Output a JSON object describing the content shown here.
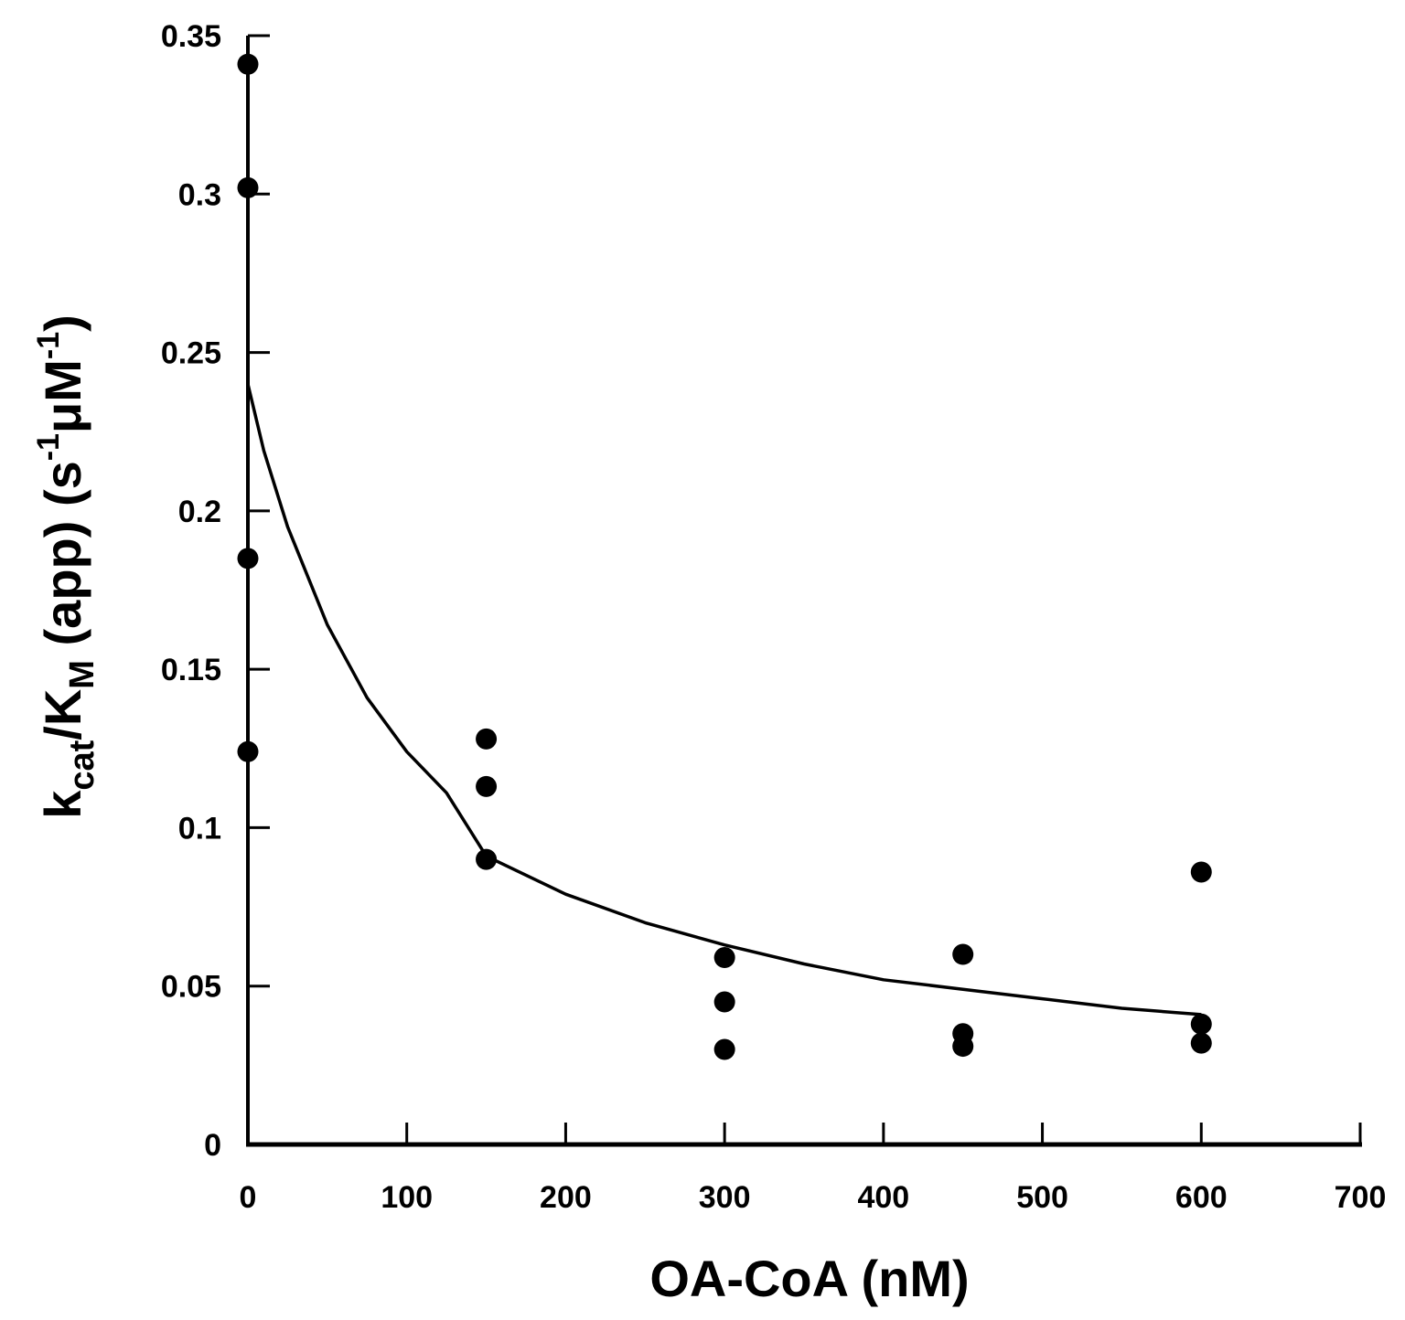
{
  "chart_data": {
    "type": "scatter",
    "title": "",
    "xlabel": "OA-CoA (nM)",
    "ylabel": {
      "parts": [
        {
          "text": "k",
          "style": "normal"
        },
        {
          "text": "cat",
          "style": "sub"
        },
        {
          "text": "/K",
          "style": "normal"
        },
        {
          "text": "M",
          "style": "sub"
        },
        {
          "text": " (app) (s",
          "style": "normal"
        },
        {
          "text": "-1",
          "style": "sup"
        },
        {
          "text": "μM",
          "style": "normal"
        },
        {
          "text": "-1",
          "style": "sup"
        },
        {
          "text": ")",
          "style": "normal"
        }
      ]
    },
    "xlim": [
      0,
      700
    ],
    "ylim": [
      0,
      0.35
    ],
    "x_ticks": [
      0,
      100,
      200,
      300,
      400,
      500,
      600,
      700
    ],
    "x_tick_labels": [
      "0",
      "100",
      "200",
      "300",
      "400",
      "500",
      "600",
      "700"
    ],
    "y_ticks": [
      0,
      0.05,
      0.1,
      0.15,
      0.2,
      0.25,
      0.3,
      0.35
    ],
    "y_tick_labels": [
      "0",
      "0.05",
      "0.1",
      "0.15",
      "0.2",
      "0.25",
      "0.3",
      "0.35"
    ],
    "grid": false,
    "series": [
      {
        "name": "measurements",
        "kind": "scatter",
        "color": "#000000",
        "points": [
          {
            "x": 0,
            "y": 0.341
          },
          {
            "x": 0,
            "y": 0.302
          },
          {
            "x": 0,
            "y": 0.185
          },
          {
            "x": 0,
            "y": 0.124
          },
          {
            "x": 150,
            "y": 0.128
          },
          {
            "x": 150,
            "y": 0.113
          },
          {
            "x": 150,
            "y": 0.09
          },
          {
            "x": 300,
            "y": 0.059
          },
          {
            "x": 300,
            "y": 0.045
          },
          {
            "x": 300,
            "y": 0.03
          },
          {
            "x": 450,
            "y": 0.06
          },
          {
            "x": 450,
            "y": 0.035
          },
          {
            "x": 450,
            "y": 0.031
          },
          {
            "x": 600,
            "y": 0.086
          },
          {
            "x": 600,
            "y": 0.038
          },
          {
            "x": 600,
            "y": 0.032
          }
        ]
      },
      {
        "name": "fit",
        "kind": "line",
        "color": "#000000",
        "points": [
          {
            "x": 0,
            "y": 0.24
          },
          {
            "x": 10,
            "y": 0.219
          },
          {
            "x": 25,
            "y": 0.195
          },
          {
            "x": 50,
            "y": 0.164
          },
          {
            "x": 75,
            "y": 0.141
          },
          {
            "x": 100,
            "y": 0.124
          },
          {
            "x": 125,
            "y": 0.111
          },
          {
            "x": 150,
            "y": 0.091
          },
          {
            "x": 200,
            "y": 0.079
          },
          {
            "x": 250,
            "y": 0.07
          },
          {
            "x": 300,
            "y": 0.063
          },
          {
            "x": 350,
            "y": 0.057
          },
          {
            "x": 400,
            "y": 0.052
          },
          {
            "x": 450,
            "y": 0.049
          },
          {
            "x": 500,
            "y": 0.046
          },
          {
            "x": 550,
            "y": 0.043
          },
          {
            "x": 600,
            "y": 0.041
          }
        ]
      }
    ]
  }
}
